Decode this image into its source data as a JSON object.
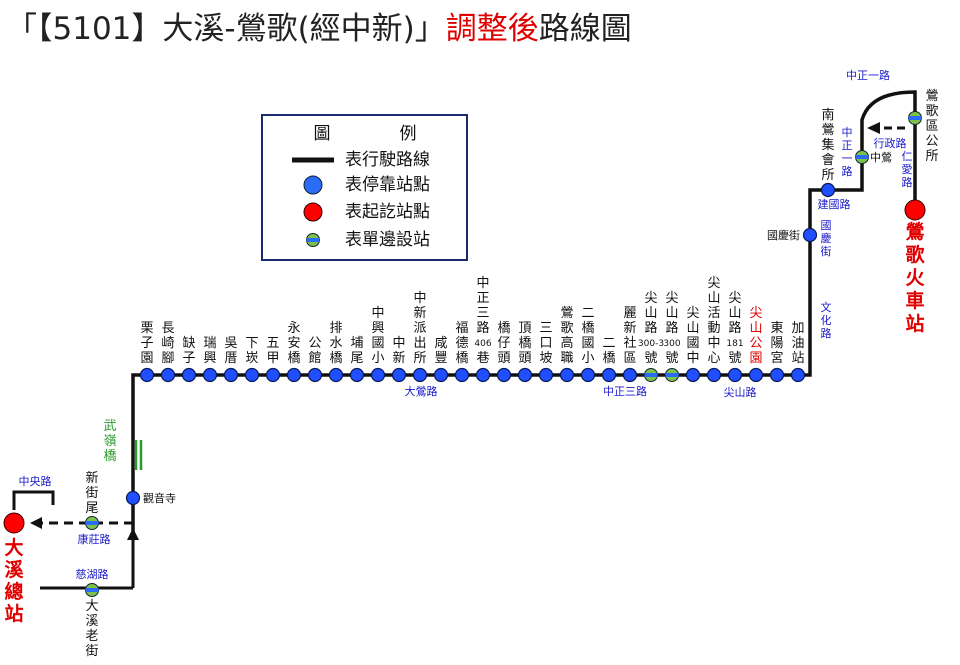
{
  "title": {
    "prefix": "「【5101】大溪-鶯歌(經中新)」",
    "highlight": "調整後",
    "suffix": "路線圖"
  },
  "legend": {
    "title_left": "圖",
    "title_right": "例",
    "items": [
      "表行駛路線",
      "表停靠站點",
      "表起訖站點",
      "表單邊設站"
    ]
  },
  "main_stops": [
    "栗子園",
    "長崎腳",
    "缺子",
    "瑞興",
    "吳厝",
    "下崁",
    "五甲",
    "永安橋",
    "公館",
    "排水橋",
    "埔尾",
    "中興國小",
    "中新",
    "中新派出所",
    "咸豐",
    "福德橋",
    "中正三路406巷",
    "橋仔頭",
    "頂橋頭",
    "三口坡",
    "鶯歌高職",
    "二橋國小",
    "二橋",
    "麗新社區",
    "尖山路300-3號",
    "尖山路300號",
    "尖山國中",
    "尖山活動中心",
    "尖山路181號",
    "尖山公園",
    "東陽宮",
    "加油站"
  ],
  "east": {
    "stops": [
      "國慶街",
      "南鶯集會所",
      "中鶯",
      "鶯歌區公所"
    ],
    "terminal": "鶯歌火車站",
    "roads": [
      "文化路",
      "國慶街",
      "建國路",
      "中正一路",
      "中正一路",
      "行政路",
      "仁愛路"
    ]
  },
  "west": {
    "stops": [
      "觀音寺",
      "新街尾",
      "大溪老街"
    ],
    "terminal": "大溪總站",
    "bridge": "武嶺橋",
    "roads": [
      "大鶯路",
      "中正三路",
      "尖山路",
      "中央路",
      "康莊路",
      "慈湖路"
    ]
  }
}
